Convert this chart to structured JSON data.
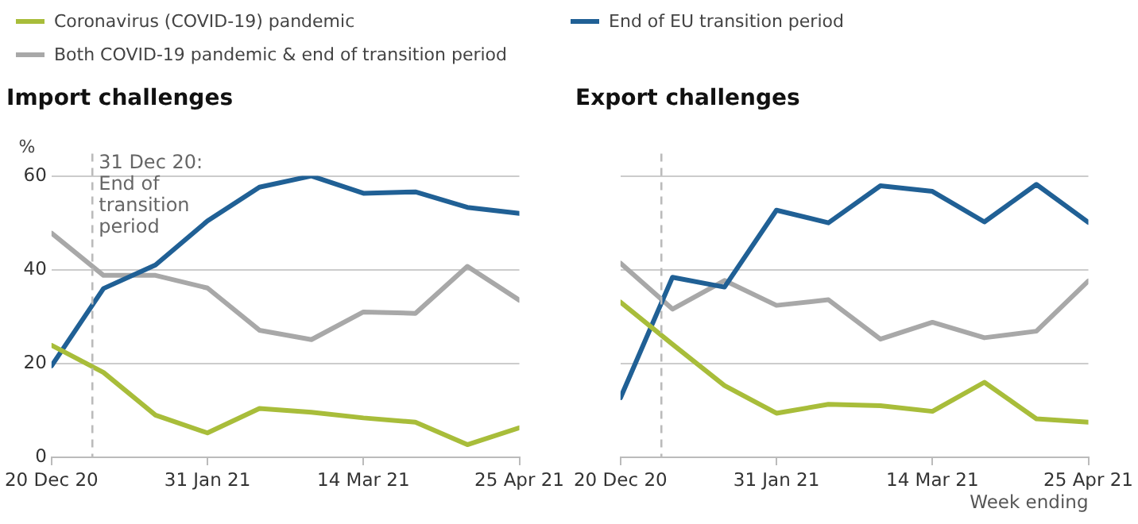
{
  "chart_data": [
    {
      "type": "line",
      "title": "Import challenges",
      "ylabel": "%",
      "legend": "top",
      "grid": "y",
      "marker": "none",
      "line_style": "solid",
      "x": [
        "2020-12-20",
        "2021-01-03",
        "2021-01-17",
        "2021-01-31",
        "2021-02-14",
        "2021-02-28",
        "2021-03-14",
        "2021-03-28",
        "2021-04-11",
        "2021-04-25"
      ],
      "xlim": [
        "2020-12-20",
        "2021-04-25"
      ],
      "xticks": [
        {
          "value": "2020-12-20",
          "label": "20 Dec 20"
        },
        {
          "value": "2021-01-31",
          "label": "31 Jan 21"
        },
        {
          "value": "2021-03-14",
          "label": "14 Mar 21"
        },
        {
          "value": "2021-04-25",
          "label": "25 Apr 21"
        }
      ],
      "ylim": [
        0,
        60
      ],
      "yticks": [
        0,
        20,
        40,
        60
      ],
      "ref_lines": [
        {
          "axis": "x",
          "value": "2020-12-31",
          "label": "31 Dec 20: End of transition period",
          "color": "#bbbbbb",
          "line_style": "dashed"
        }
      ],
      "series": [
        {
          "name": "Coronavirus (COVID-19) pandemic",
          "color": "#a8bd3a",
          "values": [
            23.9,
            18.1,
            9,
            5.2,
            10.4,
            9.6,
            8.4,
            7.5,
            2.7,
            6.3
          ]
        },
        {
          "name": "End of EU transition period",
          "color": "#206095",
          "values": [
            19.5,
            36,
            41,
            50.4,
            57.6,
            60,
            56.3,
            56.6,
            53.3,
            52
          ]
        },
        {
          "name": "Both COVID-19 pandemic & end of transition period",
          "color": "#a8a8a8",
          "values": [
            47.8,
            38.8,
            38.8,
            36.1,
            27.1,
            25.1,
            31,
            30.7,
            40.7,
            33.5
          ]
        }
      ]
    },
    {
      "type": "line",
      "title": "Export challenges",
      "xlabel": "Week ending",
      "grid": "y",
      "marker": "none",
      "line_style": "solid",
      "tick_labels": "x",
      "x": [
        "2020-12-20",
        "2021-01-03",
        "2021-01-17",
        "2021-01-31",
        "2021-02-14",
        "2021-02-28",
        "2021-03-14",
        "2021-03-28",
        "2021-04-11",
        "2021-04-25"
      ],
      "xlim": [
        "2020-12-20",
        "2021-04-25"
      ],
      "xticks": [
        {
          "value": "2020-12-20",
          "label": "20 Dec 20"
        },
        {
          "value": "2021-01-31",
          "label": "31 Jan 21"
        },
        {
          "value": "2021-03-14",
          "label": "14 Mar 21"
        },
        {
          "value": "2021-04-25",
          "label": "25 Apr 21"
        }
      ],
      "ylim": [
        0,
        60
      ],
      "yticks": [
        0,
        20,
        40,
        60
      ],
      "ref_lines": [
        {
          "axis": "x",
          "value": "2020-12-31",
          "color": "#bbbbbb",
          "line_style": "dashed"
        }
      ],
      "series": [
        {
          "color": "#a8bd3a",
          "values": [
            33.1,
            24.1,
            15.3,
            9.4,
            11.3,
            11,
            9.8,
            16,
            8.2,
            7.5
          ]
        },
        {
          "color": "#206095",
          "values": [
            12.7,
            38.4,
            36.3,
            52.7,
            50,
            57.9,
            56.7,
            50.2,
            58.2,
            50.1
          ]
        },
        {
          "color": "#a8a8a8",
          "values": [
            41.4,
            31.6,
            37.7,
            32.4,
            33.6,
            25.2,
            28.8,
            25.5,
            26.9,
            37.6
          ]
        }
      ]
    }
  ]
}
